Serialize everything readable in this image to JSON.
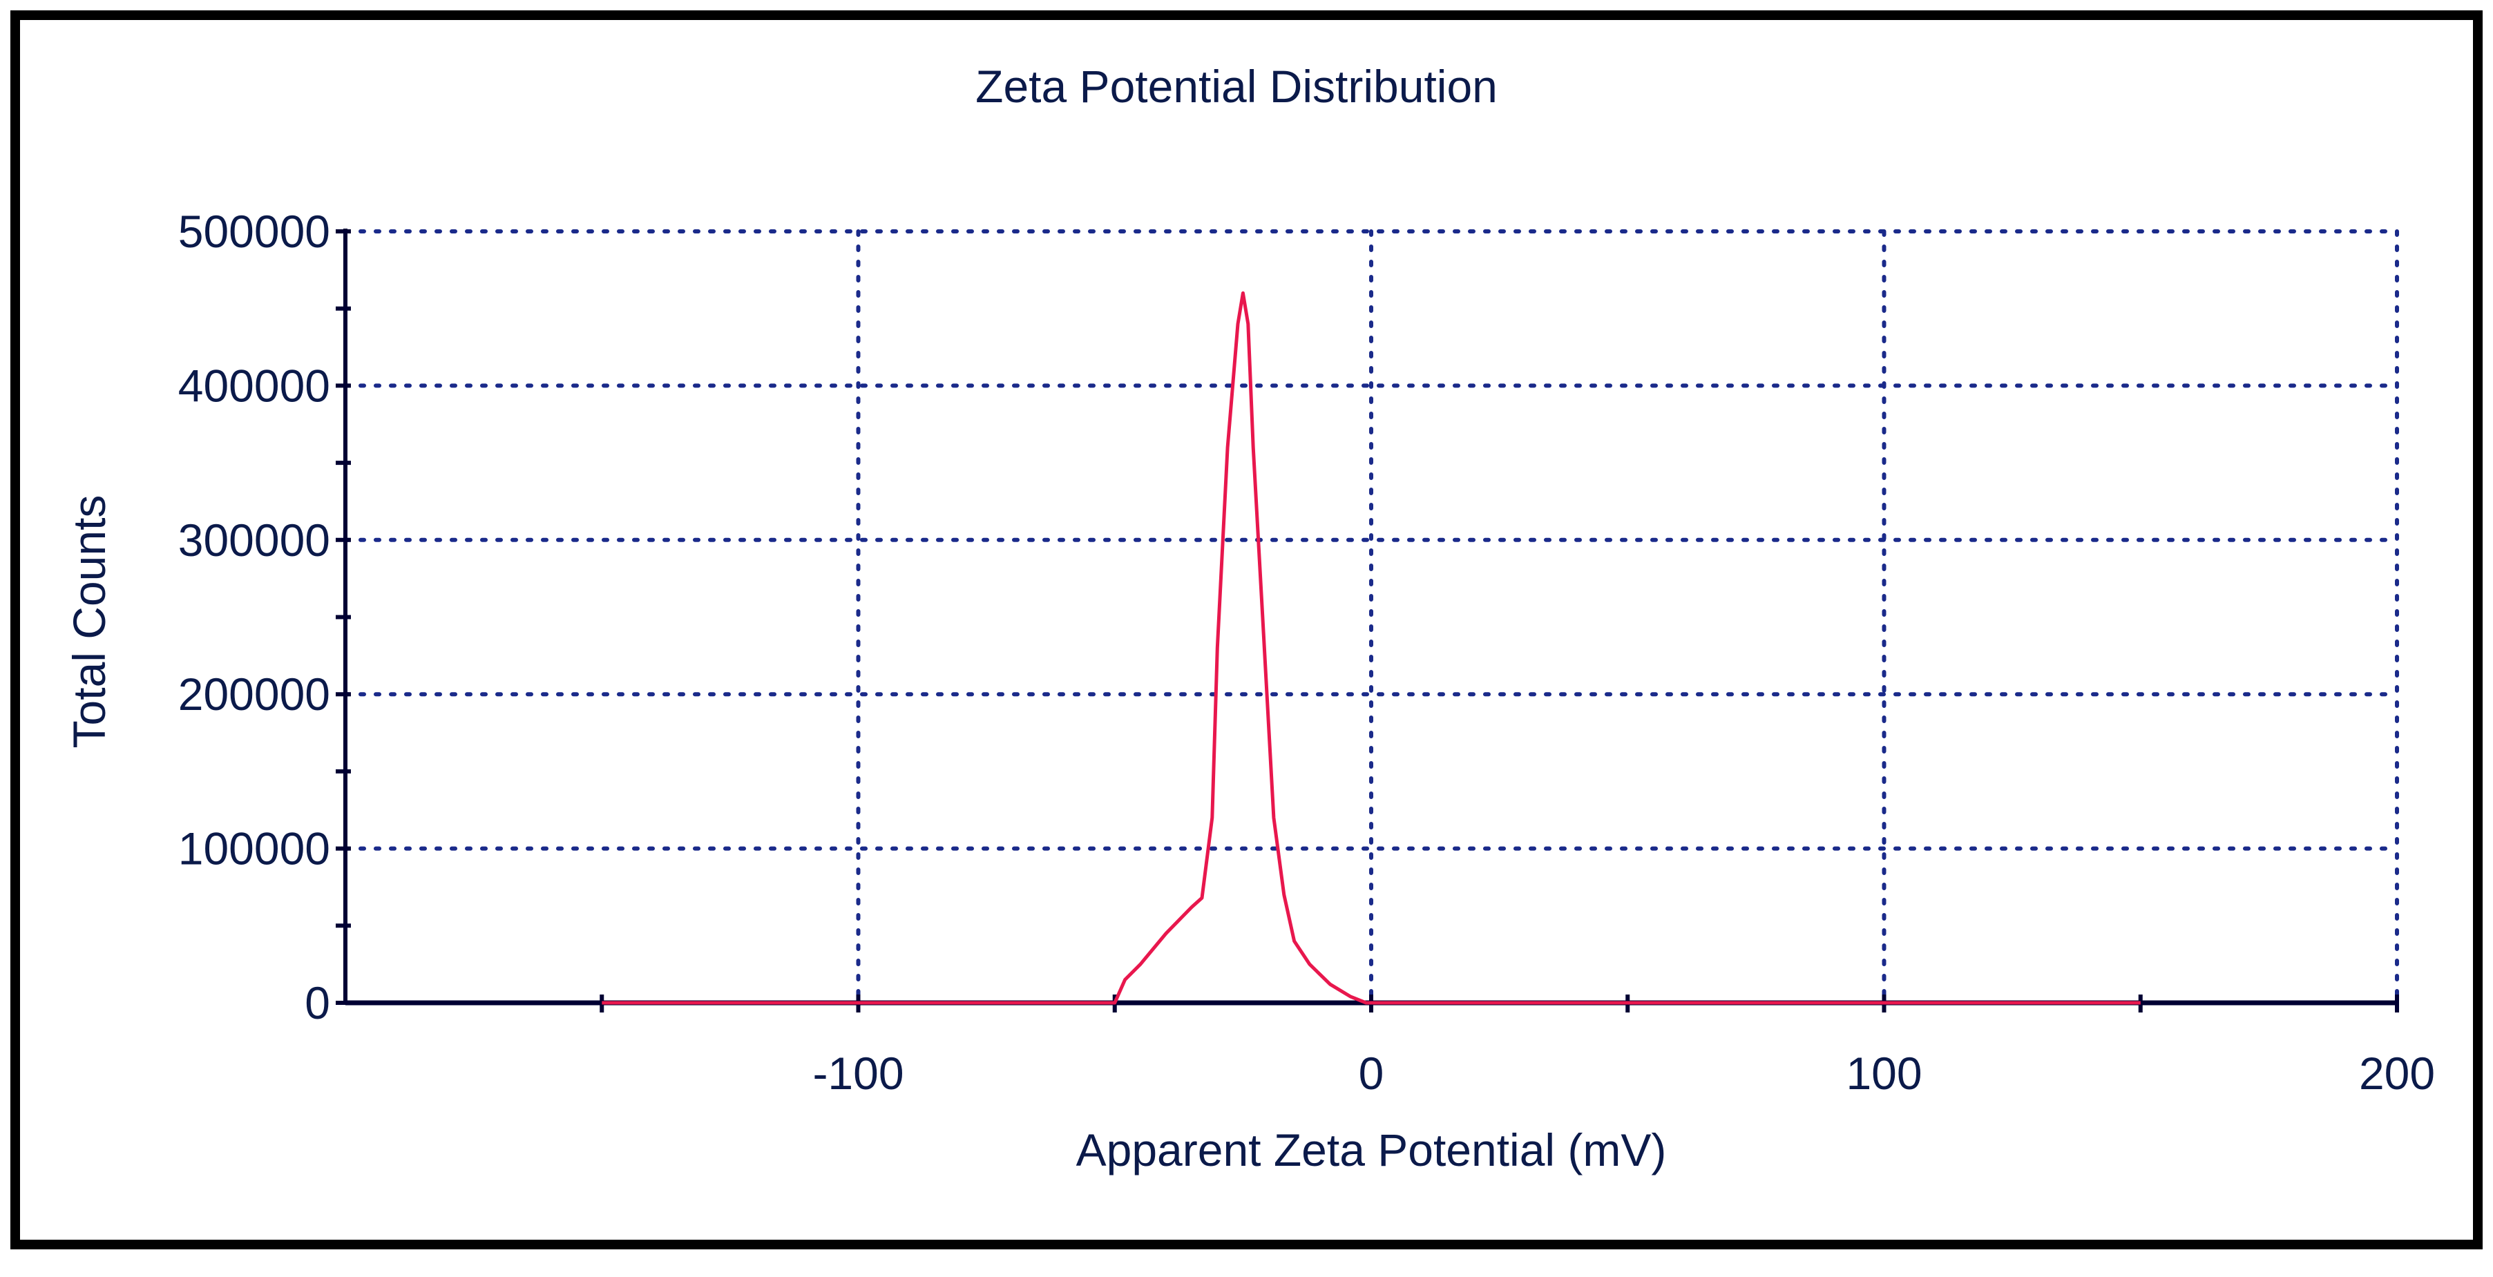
{
  "chart_data": {
    "type": "line",
    "title": "Zeta Potential Distribution",
    "xlabel": "Apparent Zeta Potential (mV)",
    "ylabel": "Total Counts",
    "xlim": [
      -200,
      200
    ],
    "ylim": [
      0,
      500000
    ],
    "x_ticks": [
      -100,
      0,
      100,
      200
    ],
    "x_tick_labels": [
      "-100",
      "0",
      "100",
      "200"
    ],
    "x_minor_ticks": [
      -150,
      -50,
      50,
      150
    ],
    "y_ticks": [
      0,
      100000,
      200000,
      300000,
      400000,
      500000
    ],
    "y_tick_labels": [
      "0",
      "100000",
      "200000",
      "300000",
      "400000",
      "500000"
    ],
    "y_minor_ticks": [
      50000,
      150000,
      250000,
      350000,
      450000
    ],
    "grid": true,
    "grid_style": "dotted",
    "series": [
      {
        "name": "Total Counts",
        "color": "#e8174d",
        "x": [
          -150,
          -60,
          -50,
          -48,
          -45,
          -40,
          -35,
          -33,
          -31,
          -30,
          -28,
          -26,
          -25,
          -24,
          -23,
          -21,
          -19,
          -17,
          -15,
          -12,
          -8,
          -4,
          -1,
          0,
          150
        ],
        "y": [
          0,
          0,
          0,
          15000,
          25000,
          45000,
          62000,
          68000,
          120000,
          230000,
          360000,
          440000,
          460000,
          440000,
          360000,
          240000,
          120000,
          70000,
          40000,
          25000,
          12000,
          4000,
          0,
          0,
          0
        ]
      }
    ]
  },
  "style": {
    "frame_color": "#000000",
    "axis_color": "#000033",
    "grid_color": "#1a2a8a",
    "text_color": "#0b1a4a",
    "line_color": "#e8174d"
  }
}
